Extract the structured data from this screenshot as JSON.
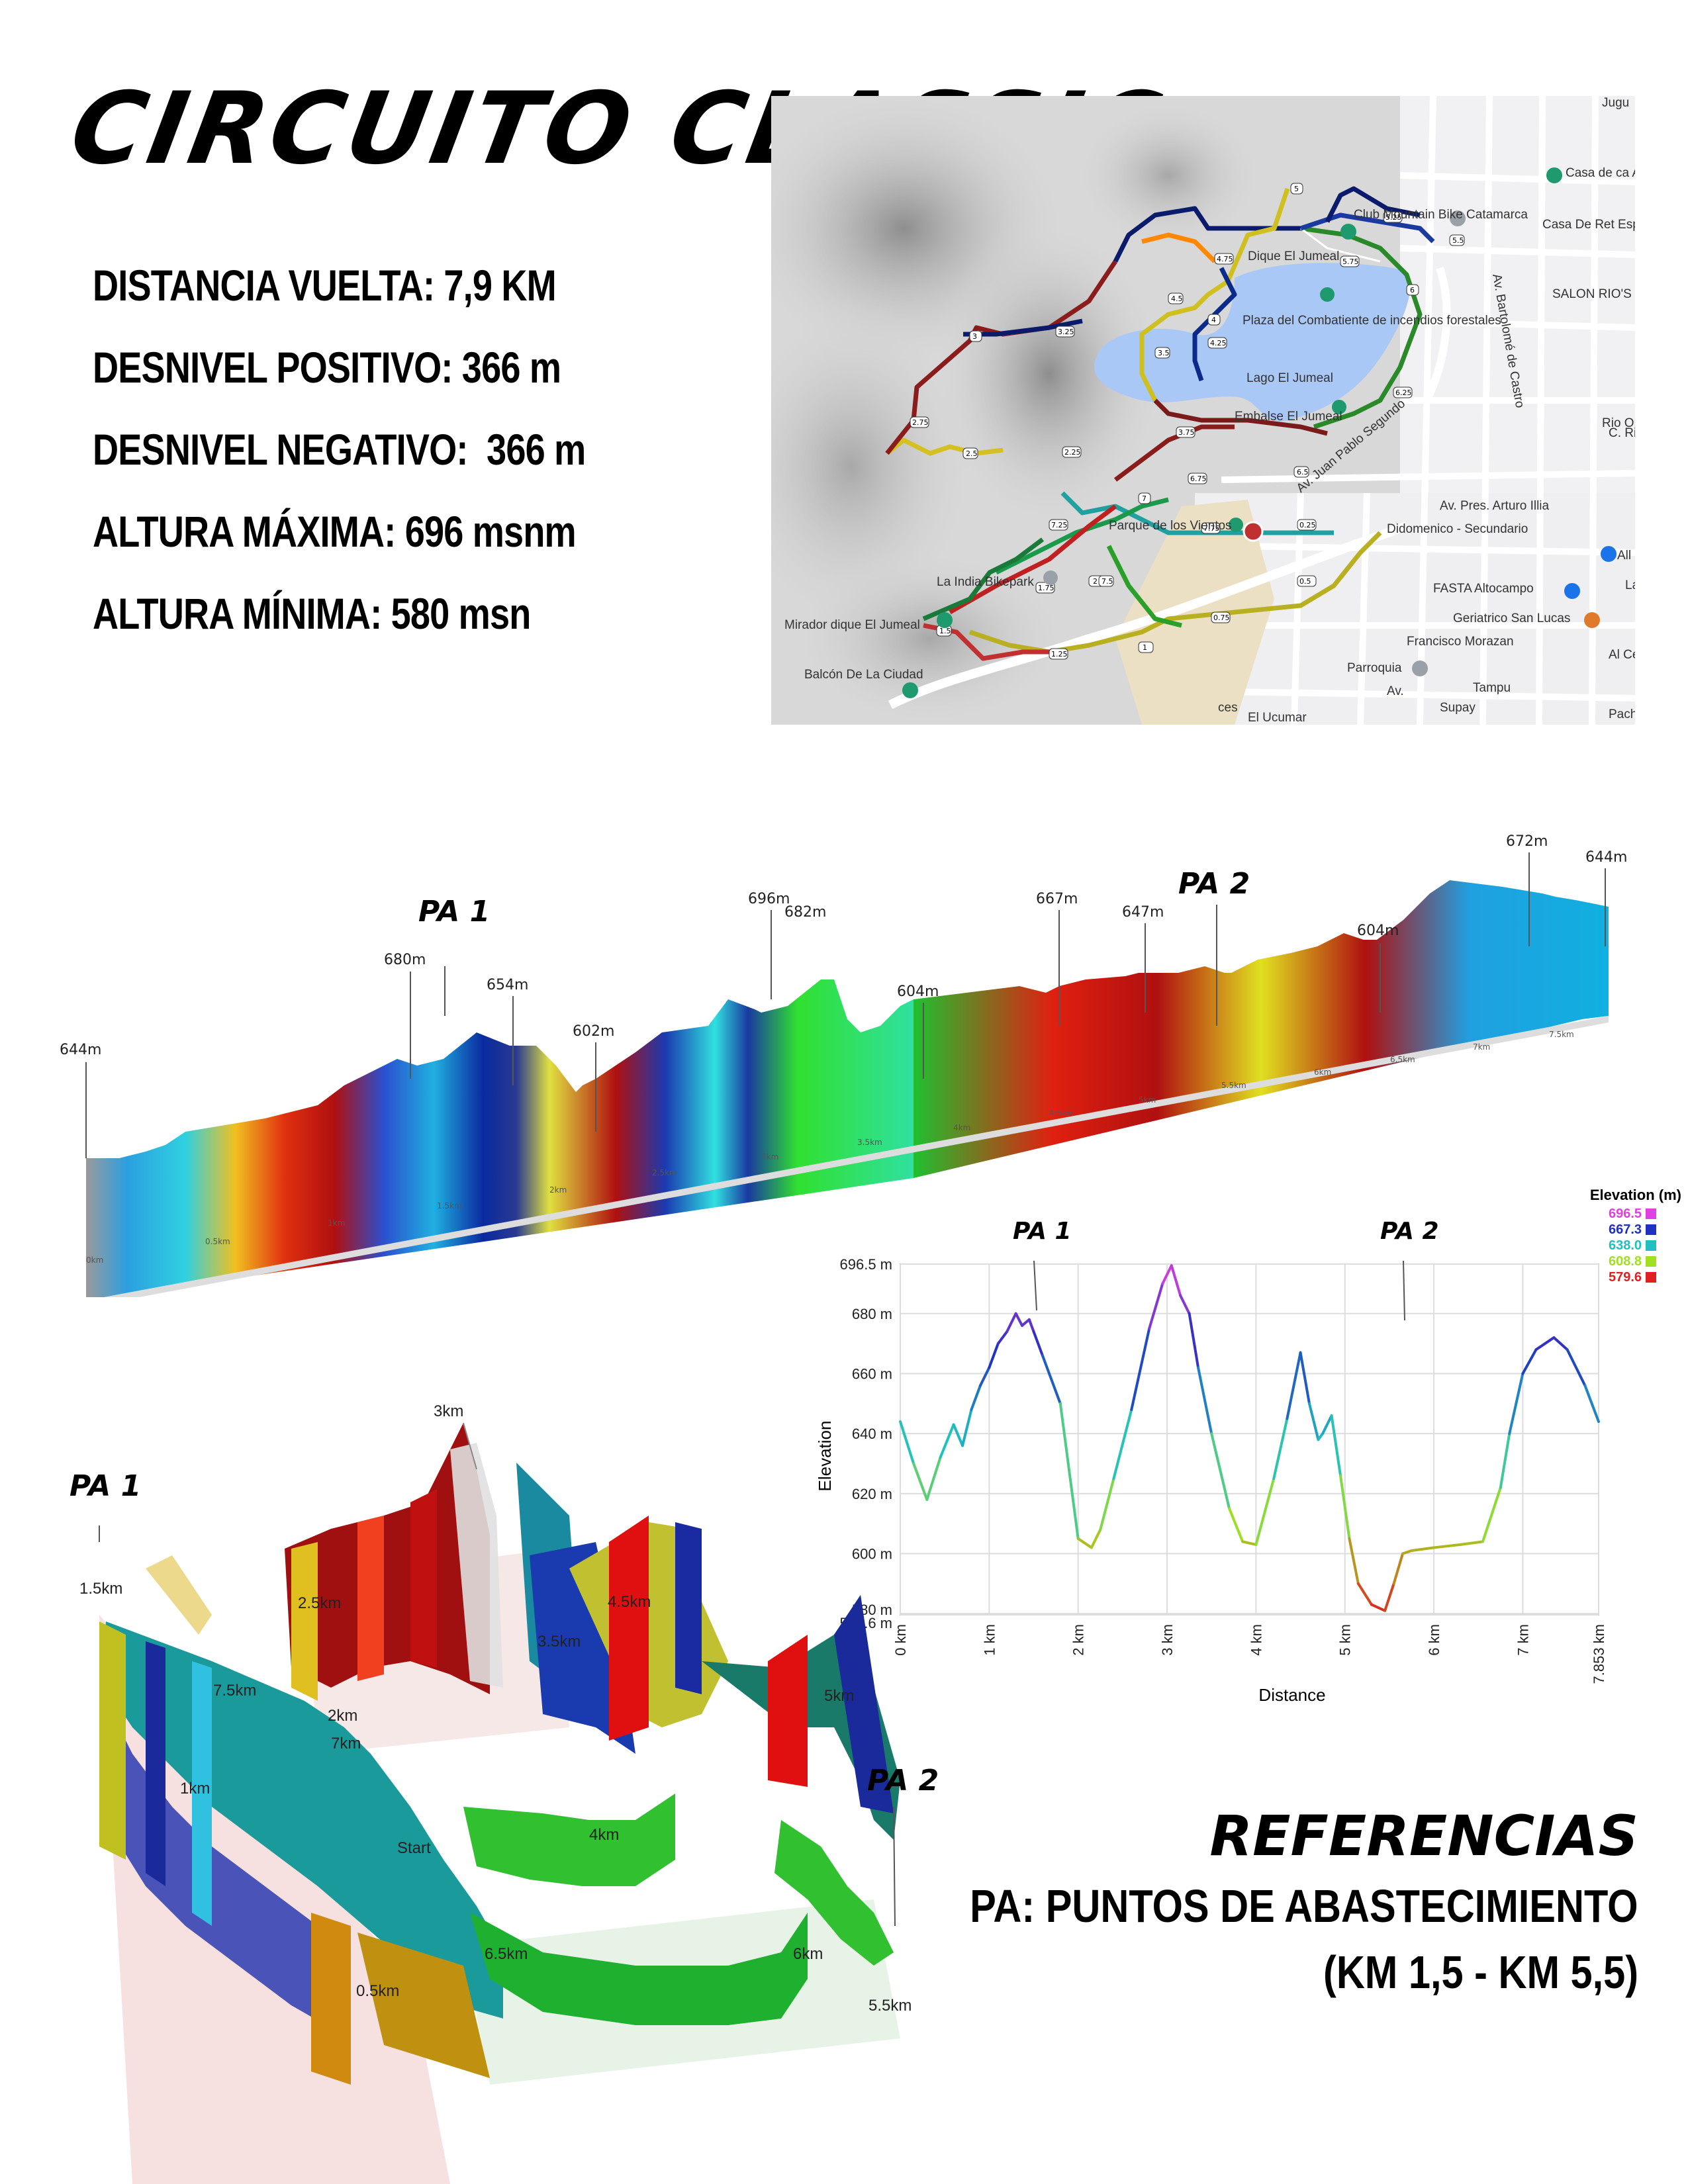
{
  "title": "CIRCUITO CLASSIC",
  "stats": [
    "DISTANCIA VUELTA: 7,9 KM",
    "DESNIVEL POSITIVO: 366 m",
    "DESNIVEL NEGATIVO:  366 m",
    "ALTURA MÁXIMA: 696 msnm",
    "ALTURA MÍNIMA: 580 msn"
  ],
  "map": {
    "labels": {
      "jug": "Jugu",
      "casa_abogados": "Casa de ca Abogados.",
      "mountain_bike": "Club Mountain Bike Catamarca",
      "casa_retiro": "Casa De Ret Espiritual EMA",
      "dique": "Dique El Jumeal",
      "salon": "SALON RIO'S",
      "plaza": "Plaza del Combatiente de incendios forestales",
      "lago": "Lago El Jumeal",
      "embalse": "Embalse El Jumeal",
      "bartolome": "Av. Bartolomé de Castro",
      "juan_pablo": "Av. Juan Pablo Segundo",
      "arturo_illia": "Av. Pres. Arturo Illia",
      "parque": "Parque de los Vientos",
      "didomenico": "Didomenico - Secundario",
      "india": "La India Bikepark",
      "mirador": "Mirador dique El Jumeal",
      "balcon": "Balcón De La Ciudad",
      "fasta": "FASTA Altocampo",
      "geriatrico": "Geriatrico San Lucas",
      "morazan": "Francisco Morazan",
      "parroquia": "Parroquia",
      "supay": "Supay",
      "ucumar": "El Ucumar",
      "rio_ongoli": "Rio Ongoli",
      "pacha": "Pach",
      "centro": "Al Centro D",
      "calle": "C. Ri",
      "all": "All",
      "la": "La",
      "tampu": "Tampu",
      "ces": "ces",
      "av": "Av."
    },
    "km_markers": [
      "0.25",
      "0.5",
      "0.75",
      "1",
      "1.25",
      "1.5",
      "1.75",
      "2",
      "2.25",
      "2.5",
      "2.75",
      "3",
      "3.25",
      "3.5",
      "3.75",
      "4",
      "4.25",
      "4.5",
      "4.75",
      "5",
      "5.25",
      "5.5",
      "5.75",
      "6",
      "6.25",
      "6.5",
      "6.75",
      "7",
      "7.25",
      "7.5",
      "7.75"
    ]
  },
  "profile3d": {
    "pa1": "PA 1",
    "pa2": "PA 2",
    "peaks": [
      "644m",
      "680m",
      "654m",
      "602m",
      "696m",
      "682m",
      "604m",
      "667m",
      "647m",
      "604m",
      "672m",
      "644m"
    ],
    "km_labels": [
      "0km",
      "0.5km",
      "1km",
      "1.5km",
      "2km",
      "2.5km",
      "3km",
      "3.5km",
      "4km",
      "4.5km",
      "5km",
      "5.5km",
      "6km",
      "6.5km",
      "7km",
      "7.5km"
    ]
  },
  "chart_data": {
    "type": "line",
    "title": "",
    "xlabel": "Distance",
    "ylabel": "Elevation",
    "xlim": [
      0,
      7.853
    ],
    "ylim": [
      579.6,
      696.5
    ],
    "x_ticks": [
      "0 km",
      "1 km",
      "2 km",
      "3 km",
      "4 km",
      "5 km",
      "6 km",
      "7 km",
      "7.853 km"
    ],
    "y_ticks": [
      "579.6 m",
      "580 m",
      "600 m",
      "620 m",
      "640 m",
      "660 m",
      "680 m",
      "696.5 m"
    ],
    "grid": true,
    "legend_title": "Elevation (m)",
    "legend": [
      {
        "label": "696.5",
        "color": "#e040e0"
      },
      {
        "label": "667.3",
        "color": "#2030c0"
      },
      {
        "label": "638.0",
        "color": "#20c0c0"
      },
      {
        "label": "608.8",
        "color": "#a0e020"
      },
      {
        "label": "579.6",
        "color": "#e02020"
      }
    ],
    "annotations": [
      "PA 1",
      "PA 2"
    ],
    "series": [
      {
        "x": [
          0,
          0.15,
          0.3,
          0.45,
          0.6,
          0.7,
          0.8,
          0.9,
          1.0,
          1.1,
          1.2,
          1.3,
          1.37,
          1.45,
          1.5,
          1.6,
          1.8,
          2.0,
          2.15,
          2.25,
          2.4,
          2.6,
          2.8,
          2.95,
          3.05,
          3.15,
          3.25,
          3.35,
          3.5,
          3.7,
          3.85,
          4.0,
          4.2,
          4.35,
          4.5,
          4.6,
          4.7,
          4.75,
          4.85,
          4.95,
          5.05,
          5.15,
          5.3,
          5.45,
          5.55,
          5.65,
          5.75,
          6.0,
          6.3,
          6.55,
          6.75,
          6.85,
          7.0,
          7.15,
          7.35,
          7.5,
          7.7,
          7.853
        ],
        "y": [
          644,
          630,
          618,
          632,
          643,
          636,
          648,
          656,
          662,
          670,
          674,
          680,
          676,
          678,
          674,
          666,
          650,
          605,
          602,
          608,
          625,
          648,
          675,
          690,
          696,
          686,
          680,
          662,
          640,
          615,
          604,
          603,
          625,
          645,
          667,
          650,
          638,
          640,
          646,
          626,
          605,
          590,
          583,
          581,
          590,
          600,
          601,
          602,
          603,
          604,
          622,
          640,
          660,
          668,
          672,
          668,
          656,
          644
        ]
      }
    ]
  },
  "map3d": {
    "pa1": "PA 1",
    "pa2": "PA 2",
    "km_labels": [
      "3km",
      "1.5km",
      "2.5km",
      "3.5km",
      "4.5km",
      "7.5km",
      "2km",
      "7km",
      "5km",
      "1km",
      "Start",
      "4km",
      "6.5km",
      "6km",
      "0.5km",
      "5.5km"
    ]
  },
  "references": {
    "title": "REFERENCIAS",
    "line1": "PA: PUNTOS DE ABASTECIMIENTO",
    "line2": "(KM 1,5 - KM 5,5)"
  }
}
